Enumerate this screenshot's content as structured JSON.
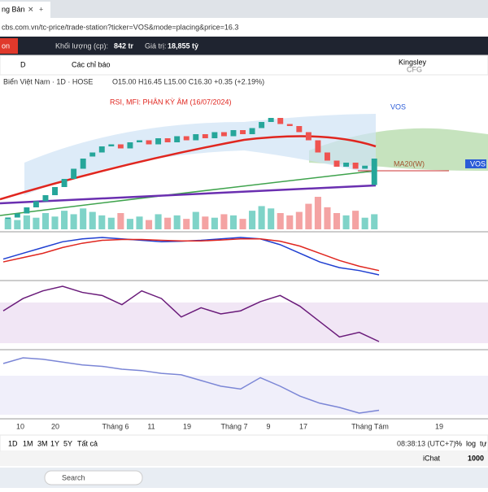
{
  "browser": {
    "tab_title": "ng Bản",
    "url": "cbs.com.vn/tc-price/trade-station?ticker=VOS&mode=placing&price=16.3"
  },
  "header": {
    "button": "on",
    "volume_label": "Khối lượng (cp):",
    "volume": "842 tr",
    "value_label": "Giá trị:",
    "value": "18,855 tỷ"
  },
  "toolbar": {
    "interval": "D",
    "indicators": "Các chỉ báo",
    "account": "Kingsley",
    "account_sub": "CFG"
  },
  "chart": {
    "symbol_title": "Biển Việt Nam · 1D · HOSE",
    "ohlc": "O15.00 H16.45 L15.00 C16.30 +0.35 (+2.19%)",
    "annotation": "RSI, MFI: PHÂN KỲ ÂM (16/07/2024)",
    "ticker": "VOS",
    "ma_label": "MA20(W)",
    "price_tag": "VOS",
    "open": [
      13.3,
      13.4,
      13.6,
      13.9,
      14.2,
      14.5,
      14.9,
      15.3,
      15.8,
      16.4,
      16.6,
      16.9,
      17.0,
      16.8,
      17.1,
      17.2,
      17.0,
      17.3,
      17.1,
      17.4,
      17.2,
      17.5,
      17.3,
      17.6,
      17.4,
      17.7,
      17.5,
      17.8,
      18.1,
      18.3,
      18.0,
      17.9,
      17.6,
      17.2,
      16.6,
      16.2,
      15.9,
      16.1,
      15.8,
      15.0
    ],
    "close": [
      13.4,
      13.6,
      13.9,
      14.2,
      14.5,
      14.9,
      15.3,
      15.8,
      16.3,
      16.6,
      16.9,
      17.0,
      16.8,
      17.1,
      17.2,
      17.0,
      17.3,
      17.1,
      17.4,
      17.2,
      17.5,
      17.3,
      17.6,
      17.4,
      17.7,
      17.5,
      17.8,
      18.1,
      18.3,
      18.0,
      17.9,
      17.6,
      17.2,
      16.6,
      16.2,
      15.9,
      16.1,
      15.8,
      15.95,
      16.3
    ],
    "volume": [
      9,
      8,
      12,
      10,
      14,
      11,
      16,
      13,
      18,
      15,
      12,
      10,
      14,
      9,
      11,
      8,
      13,
      10,
      12,
      9,
      15,
      11,
      10,
      13,
      12,
      9,
      16,
      20,
      18,
      14,
      12,
      15,
      22,
      28,
      19,
      14,
      12,
      16,
      10,
      13
    ],
    "macd": [
      0.1,
      0.3,
      0.5,
      0.7,
      0.8,
      0.85,
      0.8,
      0.75,
      0.7,
      0.72,
      0.75,
      0.8,
      0.85,
      0.8,
      0.6,
      0.3,
      0.0,
      -0.2,
      -0.3,
      -0.45
    ],
    "signal": [
      0.0,
      0.15,
      0.3,
      0.5,
      0.65,
      0.75,
      0.78,
      0.78,
      0.75,
      0.73,
      0.73,
      0.76,
      0.8,
      0.8,
      0.72,
      0.55,
      0.3,
      0.05,
      -0.15,
      -0.3
    ],
    "rsi": [
      62,
      70,
      75,
      78,
      74,
      72,
      66,
      75,
      70,
      58,
      64,
      60,
      62,
      68,
      72,
      65,
      55,
      45,
      48,
      42
    ],
    "mfi": [
      68,
      72,
      71,
      69,
      67,
      66,
      64,
      63,
      61,
      60,
      56,
      52,
      50,
      58,
      52,
      45,
      40,
      37,
      33,
      35
    ],
    "x_labels": [
      "10",
      "20",
      "Tháng 6",
      "11",
      "19",
      "Tháng 7",
      "9",
      "17",
      "Tháng Tám",
      "19"
    ]
  },
  "bottom": {
    "ranges": [
      "1D",
      "1M",
      "3M",
      "1Y",
      "5Y",
      "Tất cả"
    ],
    "time": "08:38:13 (UTC+7)",
    "pct": "%",
    "log": "log",
    "auto": "tự"
  },
  "status": {
    "chat": "iChat",
    "qty": "1000"
  },
  "taskbar": {
    "search": "Search"
  }
}
